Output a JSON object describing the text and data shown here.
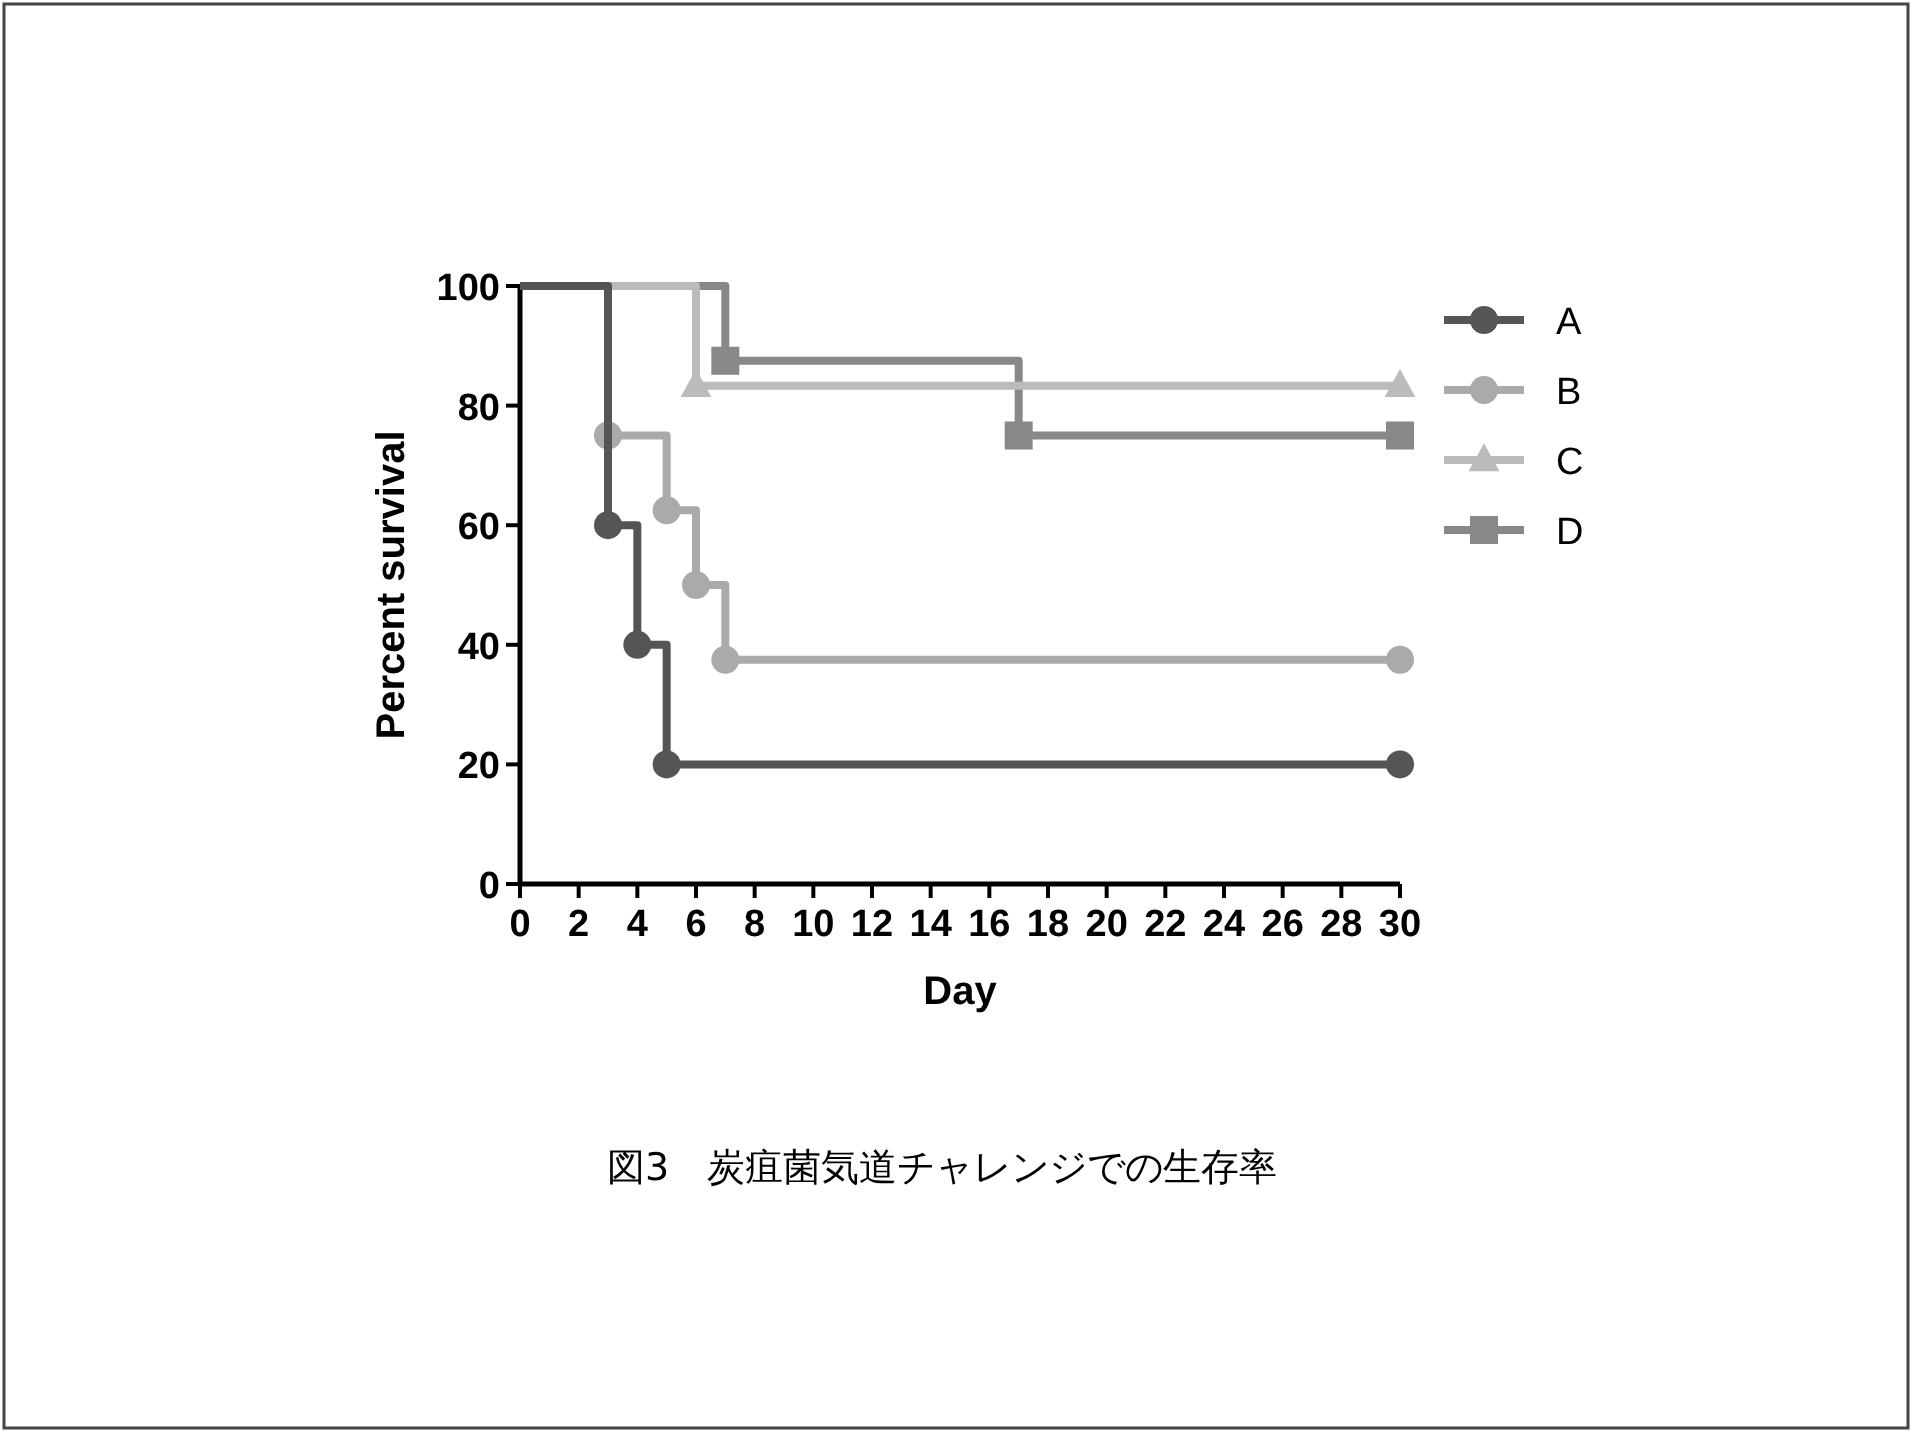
{
  "chart_data": {
    "type": "step",
    "xlabel": "Day",
    "ylabel": "Percent survival",
    "annotations": [
      "図3　炭疽菌気道チャレンジでの生存率"
    ],
    "xlim": [
      0,
      30
    ],
    "xticks": [
      0,
      2,
      4,
      6,
      8,
      10,
      12,
      14,
      16,
      18,
      20,
      22,
      24,
      26,
      28,
      30
    ],
    "ylim": [
      0,
      100
    ],
    "yticks": [
      0,
      20,
      40,
      60,
      80,
      100
    ],
    "grid": false,
    "legend": "right",
    "series": [
      {
        "name": "A",
        "color": "#555555",
        "marker": "circle",
        "x": [
          0,
          3,
          4,
          5,
          30
        ],
        "values": [
          100,
          60,
          40,
          20,
          20
        ]
      },
      {
        "name": "B",
        "color": "#aaaaaa",
        "marker": "circle",
        "x": [
          0,
          3,
          5,
          6,
          7,
          30
        ],
        "values": [
          100,
          75,
          62.5,
          50,
          37.5,
          37.5
        ]
      },
      {
        "name": "C",
        "color": "#bbbbbb",
        "marker": "triangle",
        "x": [
          0,
          6,
          30
        ],
        "values": [
          100,
          83.3,
          83.3
        ]
      },
      {
        "name": "D",
        "color": "#888888",
        "marker": "square",
        "x": [
          0,
          7,
          17,
          30
        ],
        "values": [
          100,
          87.5,
          75,
          75
        ]
      }
    ]
  }
}
